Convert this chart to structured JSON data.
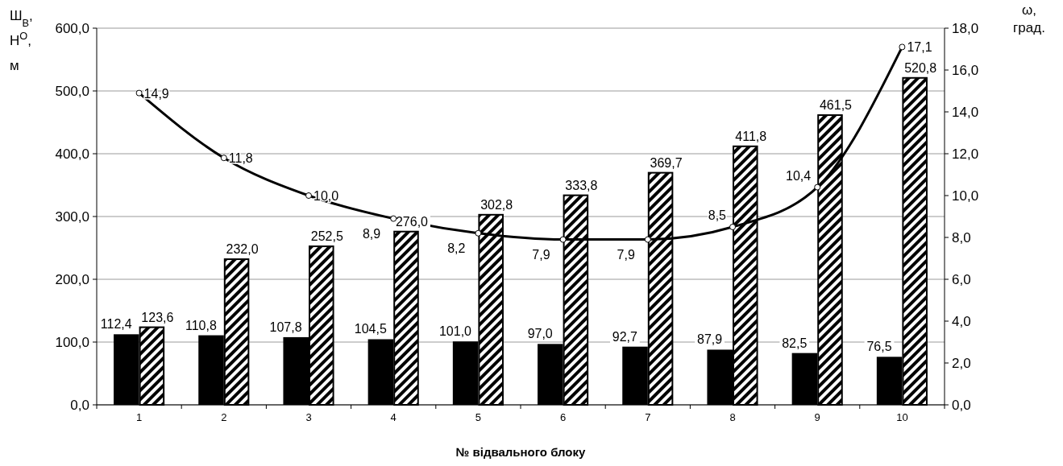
{
  "chart_data": {
    "type": "bar",
    "xlabel": "№ відвального блоку",
    "ylabel": "Ш$_{В}$, Н$^{О}$, м",
    "y2label": "ω, град.",
    "categories": [
      "1",
      "2",
      "3",
      "4",
      "5",
      "6",
      "7",
      "8",
      "9",
      "10"
    ],
    "series": [
      {
        "type": "bar",
        "color": "#000000",
        "values": [
          112.4,
          110.8,
          107.8,
          104.5,
          101.0,
          97.0,
          92.7,
          87.9,
          82.5,
          76.5
        ],
        "value_labels": [
          "112,4",
          "110,8",
          "107,8",
          "104,5",
          "101,0",
          "97,0",
          "92,7",
          "87,9",
          "82,5",
          "76,5"
        ]
      },
      {
        "type": "bar",
        "color": "#000000",
        "values": [
          123.6,
          232.0,
          252.5,
          276.0,
          302.8,
          333.8,
          369.7,
          411.8,
          461.5,
          520.8
        ],
        "value_labels": [
          "123,6",
          "232,0",
          "252,5",
          "276,0",
          "302,8",
          "333,8",
          "369,7",
          "411,8",
          "461,5",
          "520,8"
        ]
      },
      {
        "type": "line",
        "axis": "y2",
        "color": "#000000",
        "marker": "circle",
        "values": [
          14.9,
          11.8,
          10.0,
          8.9,
          8.2,
          7.9,
          7.9,
          8.5,
          10.4,
          17.1
        ],
        "value_labels": [
          "14,9",
          "11,8",
          "10,0",
          "8,9",
          "8,2",
          "7,9",
          "7,9",
          "8,5",
          "10,4",
          "17,1"
        ]
      }
    ],
    "ylim": [
      0,
      600
    ],
    "yticks": [
      {
        "value": 0,
        "label": "0,0"
      },
      {
        "value": 100,
        "label": "100,0"
      },
      {
        "value": 200,
        "label": "200,0"
      },
      {
        "value": 300,
        "label": "300,0"
      },
      {
        "value": 400,
        "label": "400,0"
      },
      {
        "value": 500,
        "label": "500,0"
      },
      {
        "value": 600,
        "label": "600,0"
      }
    ],
    "y2lim": [
      0,
      18
    ],
    "y2ticks": [
      {
        "value": 0,
        "label": "0,0"
      },
      {
        "value": 2,
        "label": "2,0"
      },
      {
        "value": 4,
        "label": "4,0"
      },
      {
        "value": 6,
        "label": "6,0"
      },
      {
        "value": 8,
        "label": "8,0"
      },
      {
        "value": 10,
        "label": "10,0"
      },
      {
        "value": 12,
        "label": "12,0"
      },
      {
        "value": 14,
        "label": "14,0"
      },
      {
        "value": 16,
        "label": "16,0"
      },
      {
        "value": 18,
        "label": "18,0"
      }
    ],
    "grid": "y"
  }
}
